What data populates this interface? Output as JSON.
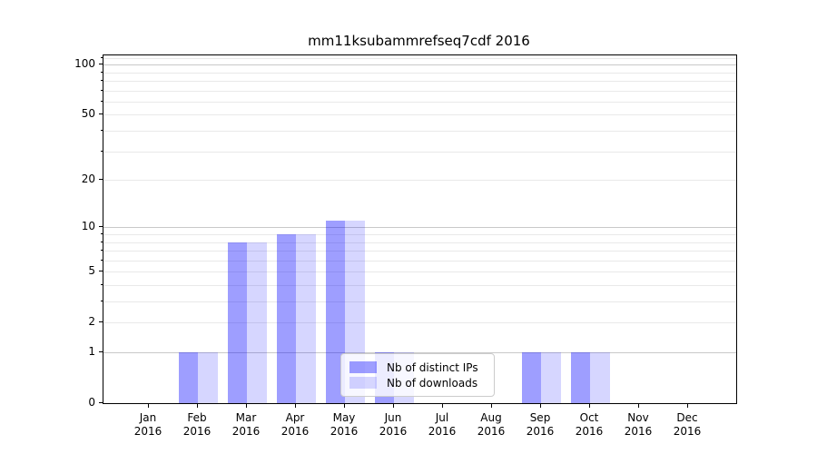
{
  "chart_data": {
    "type": "bar",
    "title": "mm11ksubammrefseq7cdf 2016",
    "months": [
      "Jan",
      "Feb",
      "Mar",
      "Apr",
      "May",
      "Jun",
      "Jul",
      "Aug",
      "Sep",
      "Oct",
      "Nov",
      "Dec"
    ],
    "year": "2016",
    "series": [
      {
        "name": "Nb of distinct IPs",
        "color": "rgba(0,0,255,0.38)",
        "values": [
          0,
          1,
          8,
          9,
          11,
          1,
          0,
          0,
          1,
          1,
          0,
          0
        ]
      },
      {
        "name": "Nb of downloads",
        "color": "rgba(0,0,255,0.16)",
        "values": [
          0,
          1,
          8,
          9,
          11,
          1,
          0,
          0,
          1,
          1,
          0,
          0
        ]
      }
    ],
    "y_scale": "log10(1+y)",
    "ylim": [
      0,
      113.6
    ],
    "y_ticks_labeled": [
      0,
      1,
      2,
      5,
      10,
      20,
      50,
      100
    ],
    "y_gridlines_major": [
      1,
      10,
      100
    ],
    "y_gridlines_minor": [
      2,
      3,
      4,
      5,
      6,
      7,
      8,
      9,
      20,
      30,
      40,
      50,
      60,
      70,
      80,
      90,
      110
    ],
    "grid": true,
    "legend": {
      "position": "lower center"
    },
    "colors": {
      "grid_major": "#c9c9c9",
      "grid_minor": "#e9e9e9",
      "spine": "#000000",
      "text": "#000000",
      "legend_border": "#cccccc",
      "legend_background": "rgba(255,255,255,0.8)"
    }
  }
}
